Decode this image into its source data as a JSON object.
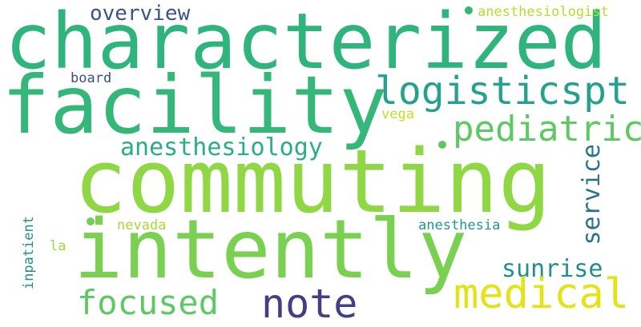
{
  "words": {
    "characterized": {
      "text": "characterized",
      "color": "#2eb47c"
    },
    "facility": {
      "text": "facility",
      "color": "#35b779"
    },
    "commuting": {
      "text": "commuting",
      "color": "#8fd744"
    },
    "intently": {
      "text": "intently",
      "color": "#7ad151"
    },
    "logisticspt": {
      "text": "logisticspt",
      "color": "#25a18e"
    },
    "pediatric": {
      "text": "pediatric",
      "color": "#5ec962"
    },
    "anesthesiology": {
      "text": "anesthesiology",
      "color": "#29af7f"
    },
    "service": {
      "text": "service",
      "color": "#2c728e"
    },
    "overview": {
      "text": "overview",
      "color": "#3b528b"
    },
    "anesthesiologist": {
      "text": "anesthesiologist",
      "color": "#b5de2b"
    },
    "board": {
      "text": "board",
      "color": "#3e4a89"
    },
    "vega": {
      "text": "vega",
      "color": "#c2df23"
    },
    "nevada": {
      "text": "nevada",
      "color": "#a8db34"
    },
    "anesthesia": {
      "text": "anesthesia",
      "color": "#1f988b"
    },
    "la": {
      "text": "la",
      "color": "#9bd93c"
    },
    "inpatient": {
      "text": "inpatient",
      "color": "#21918c"
    },
    "sunrise": {
      "text": "sunrise",
      "color": "#21908d"
    },
    "medical": {
      "text": "medical",
      "color": "#e2e418"
    },
    "focused": {
      "text": "focused",
      "color": "#5ec962"
    },
    "note": {
      "text": "note",
      "color": "#433e85"
    }
  },
  "dots": {
    "dot_top": {
      "color": "#35b779"
    },
    "dot_mid": {
      "color": "#5ec962"
    },
    "dot_left": {
      "color": "#6ece58"
    }
  }
}
